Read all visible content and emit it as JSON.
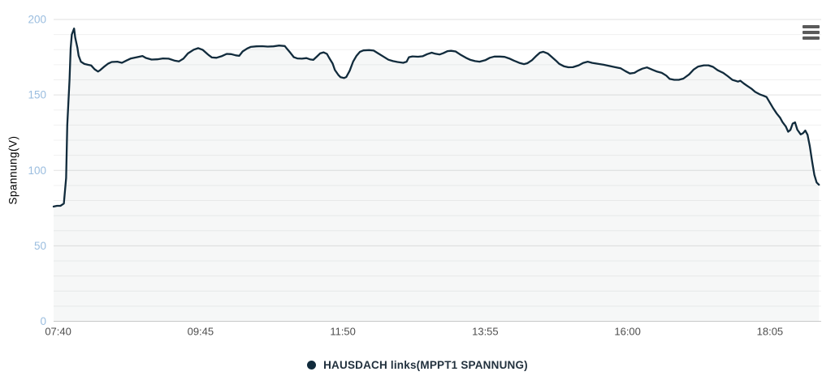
{
  "chart_data": {
    "type": "line",
    "ylabel": "Spannung(V)",
    "ylim": [
      0,
      200
    ],
    "y_major_ticks": [
      0,
      50,
      100,
      150,
      200
    ],
    "y_minor_step": 10,
    "grid": "horizontal-only",
    "x_range_minutes": [
      456,
      1130
    ],
    "x_ticks": [
      {
        "minutes": 460,
        "label": "07:40"
      },
      {
        "minutes": 585,
        "label": "09:45"
      },
      {
        "minutes": 710,
        "label": "11:50"
      },
      {
        "minutes": 835,
        "label": "13:55"
      },
      {
        "minutes": 960,
        "label": "16:00"
      },
      {
        "minutes": 1085,
        "label": "18:05"
      }
    ],
    "legend_position": "bottom-center",
    "series": [
      {
        "name": "HAUSDACH links(MPPT1 SPANNUNG)",
        "color": "#112b3c",
        "area_fill": "rgba(17,43,60,0.04)",
        "points": [
          [
            456,
            76
          ],
          [
            459,
            76.5
          ],
          [
            462,
            76.5
          ],
          [
            465,
            78
          ],
          [
            467,
            95
          ],
          [
            468,
            130
          ],
          [
            470,
            160
          ],
          [
            471,
            181
          ],
          [
            472,
            190
          ],
          [
            474,
            194
          ],
          [
            475,
            188
          ],
          [
            477,
            181
          ],
          [
            478,
            176
          ],
          [
            480,
            172
          ],
          [
            483,
            170.5
          ],
          [
            486,
            170
          ],
          [
            489,
            169.5
          ],
          [
            492,
            167
          ],
          [
            495,
            165.5
          ],
          [
            497,
            166.5
          ],
          [
            500,
            168.5
          ],
          [
            504,
            170.8
          ],
          [
            507,
            171.8
          ],
          [
            512,
            172
          ],
          [
            516,
            171.3
          ],
          [
            520,
            172.8
          ],
          [
            524,
            174.2
          ],
          [
            529,
            175
          ],
          [
            534,
            175.8
          ],
          [
            537,
            174.5
          ],
          [
            542,
            173.4
          ],
          [
            547,
            173.6
          ],
          [
            552,
            174.2
          ],
          [
            557,
            174
          ],
          [
            562,
            172.8
          ],
          [
            566,
            172.2
          ],
          [
            570,
            174
          ],
          [
            574,
            177.5
          ],
          [
            579,
            180
          ],
          [
            583,
            181
          ],
          [
            587,
            179.8
          ],
          [
            592,
            176.5
          ],
          [
            595,
            174.8
          ],
          [
            599,
            174.6
          ],
          [
            604,
            175.8
          ],
          [
            608,
            177.2
          ],
          [
            612,
            177
          ],
          [
            616,
            176.2
          ],
          [
            619,
            175.9
          ],
          [
            622,
            178.8
          ],
          [
            626,
            180.8
          ],
          [
            629,
            181.8
          ],
          [
            634,
            182.2
          ],
          [
            639,
            182.3
          ],
          [
            644,
            182
          ],
          [
            649,
            182.2
          ],
          [
            654,
            182.7
          ],
          [
            659,
            182.4
          ],
          [
            661,
            180.5
          ],
          [
            664,
            177.8
          ],
          [
            667,
            175
          ],
          [
            670,
            174.2
          ],
          [
            674,
            174
          ],
          [
            678,
            174.4
          ],
          [
            681,
            173.6
          ],
          [
            684,
            173.2
          ],
          [
            687,
            175.3
          ],
          [
            690,
            177.5
          ],
          [
            693,
            178.2
          ],
          [
            696,
            177.2
          ],
          [
            698,
            174.5
          ],
          [
            701,
            170.8
          ],
          [
            703,
            166.5
          ],
          [
            706,
            163.3
          ],
          [
            708,
            161.7
          ],
          [
            711,
            161.2
          ],
          [
            713,
            161.8
          ],
          [
            716,
            166
          ],
          [
            719,
            172
          ],
          [
            722,
            176
          ],
          [
            725,
            178.6
          ],
          [
            728,
            179.5
          ],
          [
            733,
            179.7
          ],
          [
            737,
            179.4
          ],
          [
            741,
            177.5
          ],
          [
            746,
            175.2
          ],
          [
            750,
            173.3
          ],
          [
            754,
            172.4
          ],
          [
            758,
            171.8
          ],
          [
            763,
            171.3
          ],
          [
            766,
            172
          ],
          [
            768,
            175
          ],
          [
            771,
            175.5
          ],
          [
            776,
            175.3
          ],
          [
            780,
            175.6
          ],
          [
            784,
            177
          ],
          [
            788,
            178
          ],
          [
            791,
            177.3
          ],
          [
            795,
            176.8
          ],
          [
            798,
            177.6
          ],
          [
            802,
            179
          ],
          [
            805,
            179.2
          ],
          [
            809,
            178.8
          ],
          [
            813,
            176.8
          ],
          [
            818,
            174.6
          ],
          [
            822,
            173.2
          ],
          [
            826,
            172.4
          ],
          [
            830,
            172
          ],
          [
            835,
            173
          ],
          [
            839,
            174.6
          ],
          [
            843,
            175.4
          ],
          [
            848,
            175.4
          ],
          [
            852,
            175.2
          ],
          [
            856,
            174.2
          ],
          [
            860,
            172.8
          ],
          [
            865,
            171.2
          ],
          [
            869,
            170.4
          ],
          [
            872,
            171
          ],
          [
            876,
            173
          ],
          [
            880,
            176
          ],
          [
            883,
            178
          ],
          [
            886,
            178.6
          ],
          [
            890,
            177.4
          ],
          [
            893,
            175.4
          ],
          [
            897,
            172.8
          ],
          [
            900,
            170.6
          ],
          [
            904,
            169
          ],
          [
            908,
            168.3
          ],
          [
            912,
            168.4
          ],
          [
            917,
            169.6
          ],
          [
            921,
            171.2
          ],
          [
            925,
            172
          ],
          [
            929,
            171.2
          ],
          [
            934,
            170.6
          ],
          [
            939,
            170
          ],
          [
            944,
            169.2
          ],
          [
            949,
            168.4
          ],
          [
            954,
            167.6
          ],
          [
            958,
            165.8
          ],
          [
            962,
            164.2
          ],
          [
            966,
            164.6
          ],
          [
            969,
            166
          ],
          [
            973,
            167.4
          ],
          [
            977,
            168.2
          ],
          [
            982,
            166.6
          ],
          [
            986,
            165.4
          ],
          [
            990,
            164.6
          ],
          [
            994,
            162.8
          ],
          [
            997,
            160.6
          ],
          [
            1001,
            160
          ],
          [
            1005,
            160
          ],
          [
            1009,
            160.8
          ],
          [
            1014,
            163.6
          ],
          [
            1018,
            166.8
          ],
          [
            1022,
            168.8
          ],
          [
            1027,
            169.6
          ],
          [
            1031,
            169.6
          ],
          [
            1035,
            168.6
          ],
          [
            1039,
            166.4
          ],
          [
            1044,
            164.6
          ],
          [
            1048,
            162.4
          ],
          [
            1052,
            160
          ],
          [
            1057,
            158.8
          ],
          [
            1059,
            159.4
          ],
          [
            1062,
            157.6
          ],
          [
            1065,
            156
          ],
          [
            1069,
            154
          ],
          [
            1072,
            152
          ],
          [
            1076,
            150.4
          ],
          [
            1079,
            149.6
          ],
          [
            1082,
            148.6
          ],
          [
            1085,
            144.8
          ],
          [
            1088,
            141
          ],
          [
            1091,
            137.6
          ],
          [
            1094,
            134.8
          ],
          [
            1096,
            132
          ],
          [
            1099,
            129
          ],
          [
            1101,
            125.6
          ],
          [
            1103,
            126.8
          ],
          [
            1105,
            131
          ],
          [
            1107,
            131.8
          ],
          [
            1109,
            127
          ],
          [
            1112,
            123.8
          ],
          [
            1114,
            124.6
          ],
          [
            1116,
            126.4
          ],
          [
            1118,
            123.6
          ],
          [
            1120,
            116
          ],
          [
            1122,
            106
          ],
          [
            1124,
            97
          ],
          [
            1126,
            92
          ],
          [
            1128,
            90.5
          ]
        ]
      }
    ]
  },
  "axis_style": {
    "tick_label_color_y": "#9abddf",
    "tick_label_color_x": "#4d4d4d",
    "axis_line_color": "#cccccc",
    "grid_major_color": "#e2e2e2",
    "grid_minor_color": "#f0f0f0"
  },
  "legend": {
    "label": "HAUSDACH links(MPPT1 SPANNUNG)",
    "marker": "circle",
    "marker_color": "#112b3c"
  },
  "toolbar": {
    "menu_icon": "hamburger-menu"
  }
}
